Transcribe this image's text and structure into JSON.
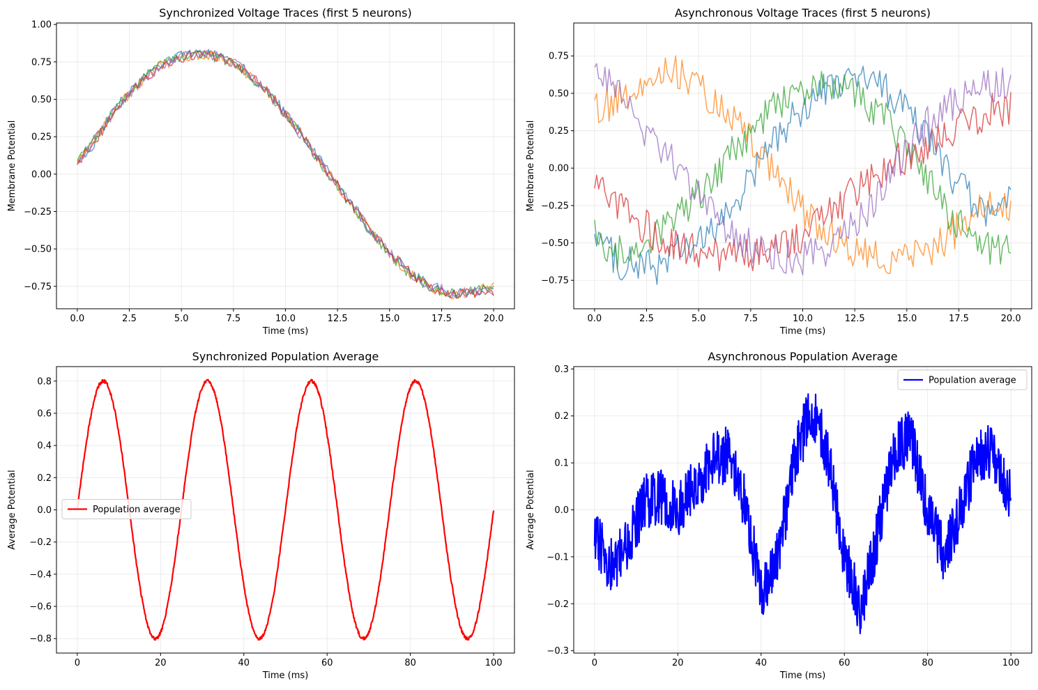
{
  "figure": {
    "background": "#ffffff"
  },
  "chart_data": [
    {
      "id": "sync-traces",
      "type": "line",
      "title": "Synchronized Voltage Traces (first 5 neurons)",
      "xlabel": "Time (ms)",
      "ylabel": "Membrane Potential",
      "xlim": [
        -1,
        21
      ],
      "ylim": [
        -0.9,
        1.01
      ],
      "xticks": [
        0,
        2.5,
        5,
        7.5,
        10,
        12.5,
        15,
        17.5,
        20
      ],
      "xtick_labels": [
        "0.0",
        "2.5",
        "5.0",
        "7.5",
        "10.0",
        "12.5",
        "15.0",
        "17.5",
        "20.0"
      ],
      "yticks": [
        -0.75,
        -0.5,
        -0.25,
        0,
        0.25,
        0.5,
        0.75,
        1.0
      ],
      "ytick_labels": [
        "−0.75",
        "−0.50",
        "−0.25",
        "0.00",
        "0.25",
        "0.50",
        "0.75",
        "1.00"
      ],
      "grid": true,
      "legend": null,
      "line_alpha": 0.7,
      "x": [
        0,
        1,
        2,
        3,
        4,
        5,
        6,
        7,
        8,
        9,
        10,
        11,
        12,
        13,
        14,
        15,
        16,
        17,
        18,
        19,
        20
      ],
      "series": [
        {
          "color": "#1f77b4",
          "values": [
            0.05,
            0.25,
            0.47,
            0.62,
            0.73,
            0.79,
            0.81,
            0.78,
            0.7,
            0.57,
            0.41,
            0.22,
            0.03,
            -0.16,
            -0.36,
            -0.53,
            -0.66,
            -0.75,
            -0.8,
            -0.79,
            -0.76
          ]
        },
        {
          "color": "#ff7f0e",
          "values": [
            0.08,
            0.26,
            0.46,
            0.61,
            0.72,
            0.78,
            0.8,
            0.77,
            0.69,
            0.56,
            0.4,
            0.21,
            0.02,
            -0.17,
            -0.36,
            -0.54,
            -0.67,
            -0.76,
            -0.8,
            -0.79,
            -0.74
          ]
        },
        {
          "color": "#2ca02c",
          "values": [
            0.1,
            0.27,
            0.47,
            0.62,
            0.73,
            0.79,
            0.8,
            0.77,
            0.69,
            0.56,
            0.4,
            0.21,
            0.01,
            -0.18,
            -0.37,
            -0.54,
            -0.67,
            -0.76,
            -0.8,
            -0.78,
            -0.75
          ]
        },
        {
          "color": "#d62728",
          "values": [
            0.07,
            0.25,
            0.45,
            0.61,
            0.72,
            0.78,
            0.81,
            0.78,
            0.7,
            0.58,
            0.41,
            0.22,
            0.02,
            -0.17,
            -0.36,
            -0.53,
            -0.66,
            -0.75,
            -0.8,
            -0.8,
            -0.81
          ]
        },
        {
          "color": "#9467bd",
          "values": [
            0.06,
            0.26,
            0.46,
            0.61,
            0.72,
            0.79,
            0.81,
            0.78,
            0.7,
            0.57,
            0.4,
            0.21,
            0.02,
            -0.17,
            -0.36,
            -0.53,
            -0.66,
            -0.75,
            -0.79,
            -0.79,
            -0.78
          ]
        }
      ]
    },
    {
      "id": "async-traces",
      "type": "line",
      "title": "Asynchronous Voltage Traces (first 5 neurons)",
      "xlabel": "Time (ms)",
      "ylabel": "Membrane Potential",
      "xlim": [
        -1,
        21
      ],
      "ylim": [
        -0.94,
        0.97
      ],
      "xticks": [
        0,
        2.5,
        5,
        7.5,
        10,
        12.5,
        15,
        17.5,
        20
      ],
      "xtick_labels": [
        "0.0",
        "2.5",
        "5.0",
        "7.5",
        "10.0",
        "12.5",
        "15.0",
        "17.5",
        "20.0"
      ],
      "yticks": [
        -0.75,
        -0.5,
        -0.25,
        0,
        0.25,
        0.5,
        0.75
      ],
      "ytick_labels": [
        "−0.75",
        "−0.50",
        "−0.25",
        "0.00",
        "0.25",
        "0.50",
        "0.75"
      ],
      "grid": true,
      "legend": null,
      "line_alpha": 0.7,
      "x": [
        0,
        1,
        2,
        3,
        4,
        5,
        6,
        7,
        8,
        9,
        10,
        11,
        12,
        13,
        14,
        15,
        16,
        17,
        18,
        19,
        20
      ],
      "series": [
        {
          "color": "#1f77b4",
          "values": [
            -0.4,
            -0.62,
            -0.65,
            -0.66,
            -0.55,
            -0.52,
            -0.38,
            -0.18,
            0.05,
            0.25,
            0.4,
            0.52,
            0.58,
            0.6,
            0.52,
            0.38,
            0.2,
            -0.02,
            -0.2,
            -0.35,
            -0.22
          ]
        },
        {
          "color": "#ff7f0e",
          "values": [
            0.38,
            0.45,
            0.55,
            0.6,
            0.65,
            0.55,
            0.4,
            0.28,
            0.1,
            -0.1,
            -0.28,
            -0.42,
            -0.52,
            -0.56,
            -0.6,
            -0.58,
            -0.55,
            -0.46,
            -0.34,
            -0.22,
            -0.27
          ]
        },
        {
          "color": "#2ca02c",
          "values": [
            -0.44,
            -0.58,
            -0.52,
            -0.44,
            -0.32,
            -0.18,
            0.0,
            0.18,
            0.32,
            0.45,
            0.52,
            0.58,
            0.55,
            0.45,
            0.32,
            0.12,
            -0.08,
            -0.3,
            -0.45,
            -0.55,
            -0.52
          ]
        },
        {
          "color": "#d62728",
          "values": [
            -0.1,
            -0.22,
            -0.35,
            -0.45,
            -0.5,
            -0.56,
            -0.58,
            -0.6,
            -0.57,
            -0.52,
            -0.45,
            -0.35,
            -0.22,
            -0.1,
            0.0,
            0.08,
            0.16,
            0.25,
            0.32,
            0.38,
            0.4
          ]
        },
        {
          "color": "#9467bd",
          "values": [
            0.72,
            0.52,
            0.3,
            0.15,
            0.0,
            -0.18,
            -0.35,
            -0.48,
            -0.56,
            -0.58,
            -0.6,
            -0.56,
            -0.45,
            -0.3,
            -0.1,
            0.12,
            0.3,
            0.42,
            0.5,
            0.55,
            0.55
          ]
        }
      ]
    },
    {
      "id": "sync-average",
      "type": "line",
      "title": "Synchronized Population Average",
      "xlabel": "Time (ms)",
      "ylabel": "Average Potential",
      "xlim": [
        -5,
        105
      ],
      "ylim": [
        -0.89,
        0.89
      ],
      "xticks": [
        0,
        20,
        40,
        60,
        80,
        100
      ],
      "xtick_labels": [
        "0",
        "20",
        "40",
        "60",
        "80",
        "100"
      ],
      "yticks": [
        -0.8,
        -0.6,
        -0.4,
        -0.2,
        0,
        0.2,
        0.4,
        0.6,
        0.8
      ],
      "ytick_labels": [
        "−0.8",
        "−0.6",
        "−0.4",
        "−0.2",
        "0.0",
        "0.2",
        "0.4",
        "0.6",
        "0.8"
      ],
      "grid": true,
      "legend": {
        "position": "center-left",
        "entries": [
          "Population average"
        ]
      },
      "x": [
        0,
        6.25,
        12.5,
        18.75,
        25,
        31.25,
        37.5,
        43.75,
        50,
        56.25,
        62.5,
        68.75,
        75,
        81.25,
        87.5,
        93.75,
        100
      ],
      "series": [
        {
          "name": "Population average",
          "color": "#ff0000",
          "values": [
            0.0,
            0.8,
            0.0,
            -0.8,
            0.0,
            0.8,
            0.0,
            -0.8,
            0.0,
            0.8,
            0.0,
            -0.8,
            0.0,
            0.8,
            0.0,
            -0.8,
            0.0
          ]
        }
      ]
    },
    {
      "id": "async-average",
      "type": "line",
      "title": "Asynchronous Population Average",
      "xlabel": "Time (ms)",
      "ylabel": "Average Potential",
      "xlim": [
        -5,
        105
      ],
      "ylim": [
        -0.305,
        0.305
      ],
      "xticks": [
        0,
        20,
        40,
        60,
        80,
        100
      ],
      "xtick_labels": [
        "0",
        "20",
        "40",
        "60",
        "80",
        "100"
      ],
      "yticks": [
        -0.3,
        -0.2,
        -0.1,
        0,
        0.1,
        0.2,
        0.3
      ],
      "ytick_labels": [
        "−0.3",
        "−0.2",
        "−0.1",
        "0.0",
        "0.1",
        "0.2",
        "0.3"
      ],
      "grid": true,
      "legend": {
        "position": "top-right",
        "entries": [
          "Population average"
        ]
      },
      "x": [
        0,
        4,
        8,
        12,
        16,
        20,
        24,
        28,
        32,
        36,
        40,
        44,
        48,
        52,
        56,
        60,
        64,
        68,
        72,
        76,
        80,
        84,
        88,
        92,
        96,
        100
      ],
      "series": [
        {
          "name": "Population average",
          "color": "#0000ff",
          "values": [
            -0.05,
            -0.12,
            -0.08,
            0.02,
            0.03,
            0.0,
            0.05,
            0.1,
            0.12,
            0.02,
            -0.18,
            -0.1,
            0.1,
            0.22,
            0.12,
            -0.1,
            -0.22,
            -0.05,
            0.12,
            0.16,
            0.0,
            -0.1,
            0.0,
            0.12,
            0.12,
            0.02
          ]
        }
      ]
    }
  ]
}
